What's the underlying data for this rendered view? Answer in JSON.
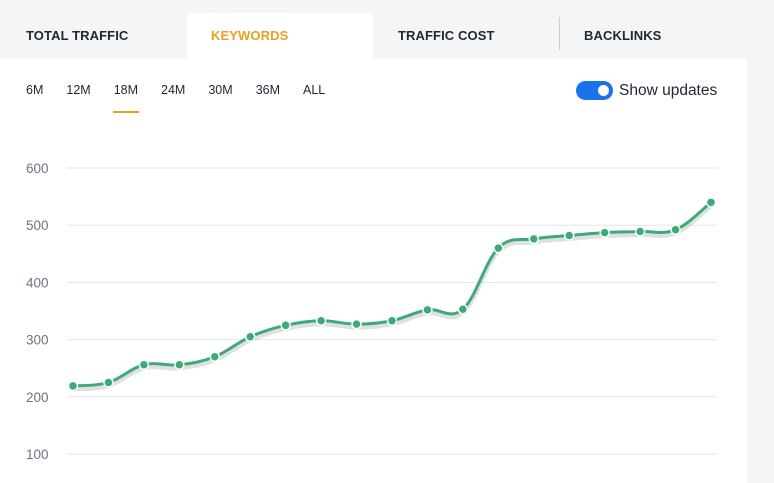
{
  "tabs": [
    {
      "label": "TOTAL TRAFFIC"
    },
    {
      "label": "KEYWORDS"
    },
    {
      "label": "TRAFFIC COST"
    },
    {
      "label": "BACKLINKS"
    }
  ],
  "ranges": [
    {
      "label": "6M"
    },
    {
      "label": "12M"
    },
    {
      "label": "18M"
    },
    {
      "label": "24M"
    },
    {
      "label": "30M"
    },
    {
      "label": "36M"
    },
    {
      "label": "ALL"
    }
  ],
  "active_range": "18M",
  "toggle": {
    "label": "Show updates",
    "on": true
  },
  "colors": {
    "accent": "#e8a020",
    "line": "#3dab78",
    "toggle": "#1a73e8"
  },
  "chart_data": {
    "type": "line",
    "yticks": [
      100,
      200,
      300,
      400,
      500,
      600
    ],
    "series": [
      {
        "values": [
          219,
          225,
          256,
          256,
          270,
          305,
          325,
          333,
          327,
          333,
          352,
          353,
          460,
          476,
          482,
          487,
          489,
          492,
          540
        ]
      }
    ],
    "ylim": [
      100,
      600
    ],
    "grid": true
  }
}
